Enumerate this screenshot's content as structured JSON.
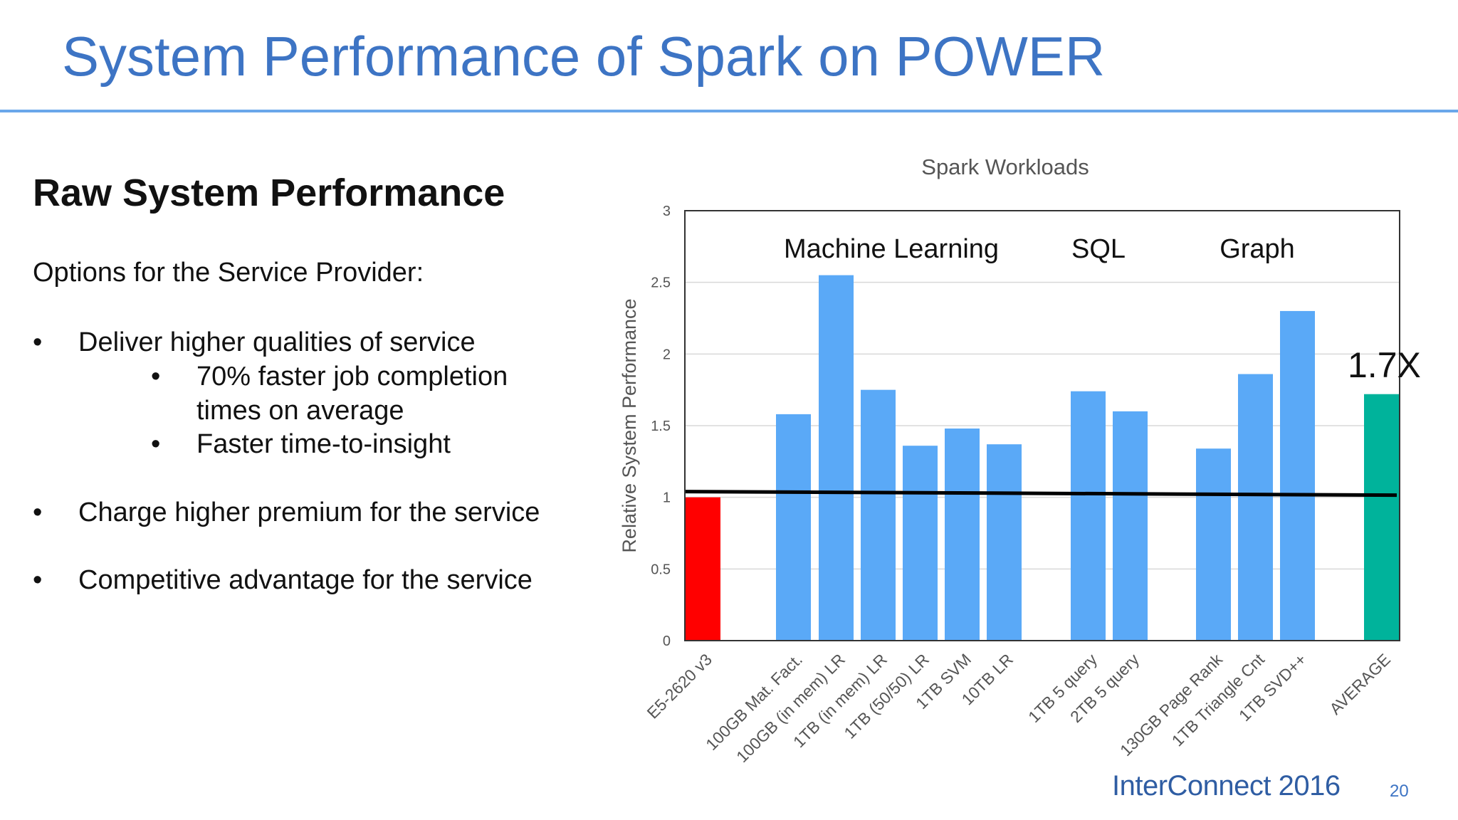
{
  "slide": {
    "title": "System Performance of Spark on POWER",
    "footer_brand": "InterConnect 2016",
    "page_number": "20"
  },
  "left_panel": {
    "heading": "Raw System Performance",
    "intro": "Options for the Service Provider:",
    "bullet_1": "Deliver higher qualities of service",
    "sub_bullet_1a_line1": "70% faster job completion",
    "sub_bullet_1a_line2": "times on average",
    "sub_bullet_1b": "Faster time-to-insight",
    "bullet_2": "Charge higher premium for the service",
    "bullet_3": "Competitive advantage for the service",
    "bullet_glyph": "•"
  },
  "chart_data": {
    "type": "bar",
    "title": "Spark Workloads",
    "ylabel": "Relative System  Performance",
    "xlabel": "",
    "ylim": [
      0,
      3
    ],
    "yticks": [
      "0",
      "0.5",
      "1",
      "1.5",
      "2",
      "2.5",
      "3"
    ],
    "grid": true,
    "categories": [
      "E5-2620 v3",
      "100GB Mat. Fact.",
      "100GB (in mem) LR",
      "1TB (in mem) LR",
      "1TB (50/50) LR",
      "1TB SVM",
      "10TB LR",
      "1TB 5 query",
      "2TB 5 query",
      "130GB Page Rank",
      "1TB Triangle Cnt",
      "1TB SVD++",
      "AVERAGE"
    ],
    "values": [
      1.0,
      1.58,
      2.55,
      1.75,
      1.36,
      1.48,
      1.37,
      1.74,
      1.6,
      1.34,
      1.86,
      2.3,
      1.72
    ],
    "bar_colors": [
      "#ff0000",
      "#5aa9f7",
      "#5aa9f7",
      "#5aa9f7",
      "#5aa9f7",
      "#5aa9f7",
      "#5aa9f7",
      "#5aa9f7",
      "#5aa9f7",
      "#5aa9f7",
      "#5aa9f7",
      "#5aa9f7",
      "#00b39b"
    ],
    "group_labels": [
      "Machine Learning",
      "SQL",
      "Graph"
    ],
    "annotation": "1.7X",
    "reference_line": 1.03
  }
}
